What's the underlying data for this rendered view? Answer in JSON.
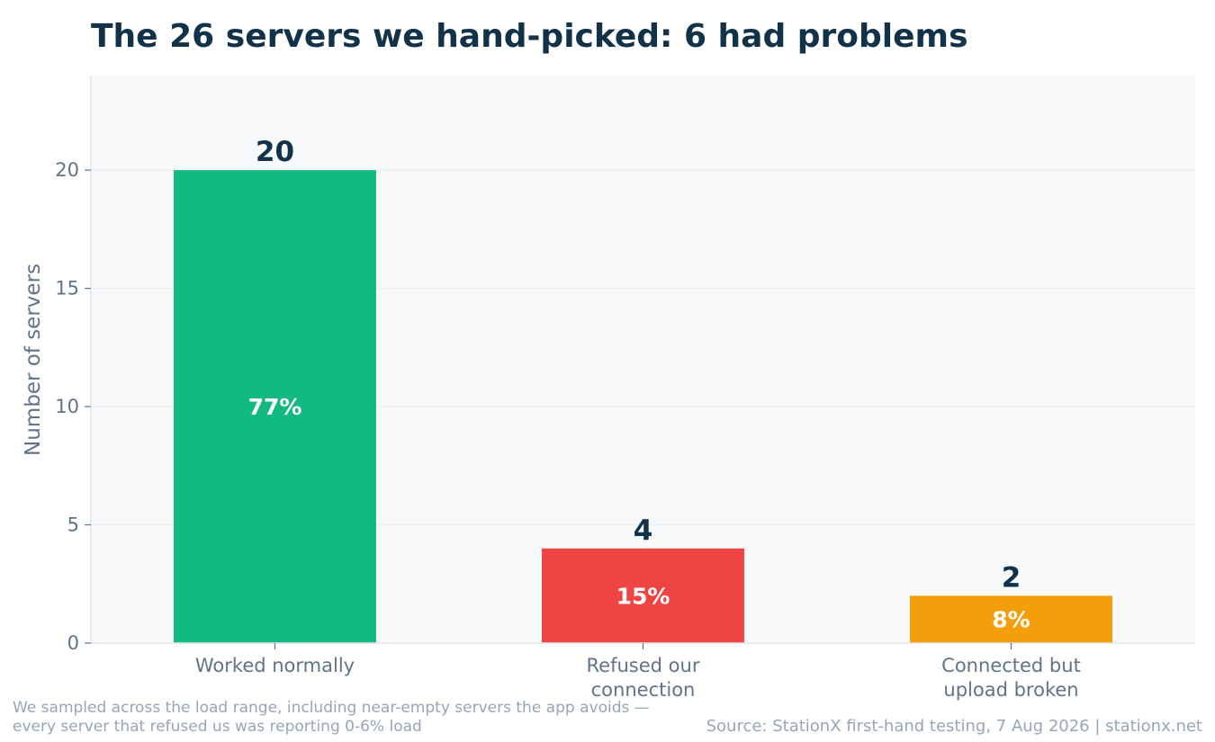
{
  "chart_data": {
    "type": "bar",
    "title": "The 26 servers we hand-picked: 6 had problems",
    "xlabel": "",
    "ylabel": "Number of servers",
    "ylim": [
      0,
      24
    ],
    "yticks": [
      "0",
      "5",
      "10",
      "15",
      "20"
    ],
    "grid": true,
    "categories": [
      [
        "Worked normally"
      ],
      [
        "Refused our",
        "connection"
      ],
      [
        "Connected but",
        "upload broken"
      ]
    ],
    "values": [
      20,
      4,
      2
    ],
    "value_labels": [
      "20",
      "4",
      "2"
    ],
    "percent_labels": [
      "77%",
      "15%",
      "8%"
    ],
    "colors": [
      "#12b981",
      "#ef4444",
      "#f39e0b"
    ]
  },
  "footnote": [
    "We sampled across the load range, including near-empty servers the app avoids —",
    "every server that refused us was reporting 0-6% load"
  ],
  "source": "Source: StationX first-hand testing, 7 Aug 2026 | stationx.net",
  "colors": {
    "title": "#12324a",
    "axis_text": "#617388",
    "plot_background": "#f8f9fb",
    "gridline": "#eef1f4",
    "footnote": "#97a6b6"
  }
}
